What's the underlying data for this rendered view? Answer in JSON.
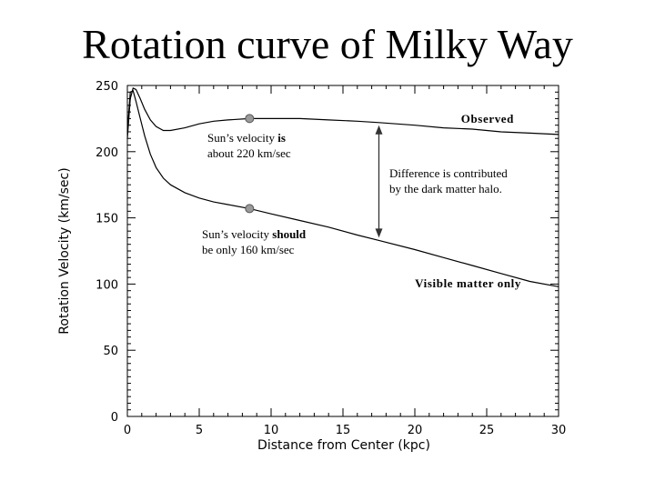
{
  "chart_data": {
    "type": "line",
    "title": "Rotation curve of Milky Way",
    "xlabel": "Distance from Center (kpc)",
    "ylabel": "Rotation Velocity (km/sec)",
    "xlim": [
      0,
      30
    ],
    "ylim": [
      0,
      250
    ],
    "x_ticks": [
      0,
      5,
      10,
      15,
      20,
      25,
      30
    ],
    "y_ticks": [
      0,
      50,
      100,
      150,
      200,
      250
    ],
    "grid": false,
    "series": [
      {
        "name": "Observed",
        "x": [
          0,
          0.2,
          0.4,
          0.6,
          0.9,
          1.2,
          1.6,
          2.0,
          2.5,
          3.0,
          4.0,
          5.0,
          6.0,
          7.0,
          8.5,
          10.0,
          12.0,
          14.0,
          16.0,
          17.5,
          20.0,
          22.0,
          24.0,
          26.0,
          28.0,
          30.0
        ],
        "values": [
          210,
          240,
          248,
          247,
          240,
          232,
          224,
          219,
          216,
          216,
          218,
          221,
          223,
          224,
          225,
          225,
          225,
          224,
          223,
          222,
          220,
          218,
          217,
          215,
          214,
          213
        ]
      },
      {
        "name": "Visible matter only",
        "x": [
          0,
          0.2,
          0.4,
          0.6,
          0.9,
          1.2,
          1.6,
          2.0,
          2.5,
          3.0,
          4.0,
          5.0,
          6.0,
          7.0,
          8.5,
          10.0,
          12.0,
          14.0,
          16.0,
          17.5,
          20.0,
          22.0,
          24.0,
          26.0,
          28.0,
          30.0
        ],
        "values": [
          215,
          245,
          246,
          238,
          225,
          212,
          198,
          188,
          180,
          175,
          169,
          165,
          162,
          160,
          157,
          153,
          148,
          143,
          137,
          133,
          126,
          120,
          114,
          108,
          102,
          98
        ]
      }
    ],
    "points": [
      {
        "x": 8.5,
        "y": 225
      },
      {
        "x": 8.5,
        "y": 157
      }
    ],
    "difference_arrow": {
      "x": 17.5,
      "y_from": 133,
      "y_to": 222
    },
    "annotations": {
      "observed": "Observed",
      "visible": "Visible matter only",
      "sun_is_line1_prefix": "Sun’s velocity ",
      "sun_is_line1_bold": "is",
      "sun_is_line2": "about 220 km/sec",
      "sun_should_line1_prefix": "Sun’s velocity ",
      "sun_should_line1_bold": "should",
      "sun_should_line2": "be only 160 km/sec",
      "difference_line1": "Difference is contributed",
      "difference_line2": "by the dark matter halo."
    }
  }
}
